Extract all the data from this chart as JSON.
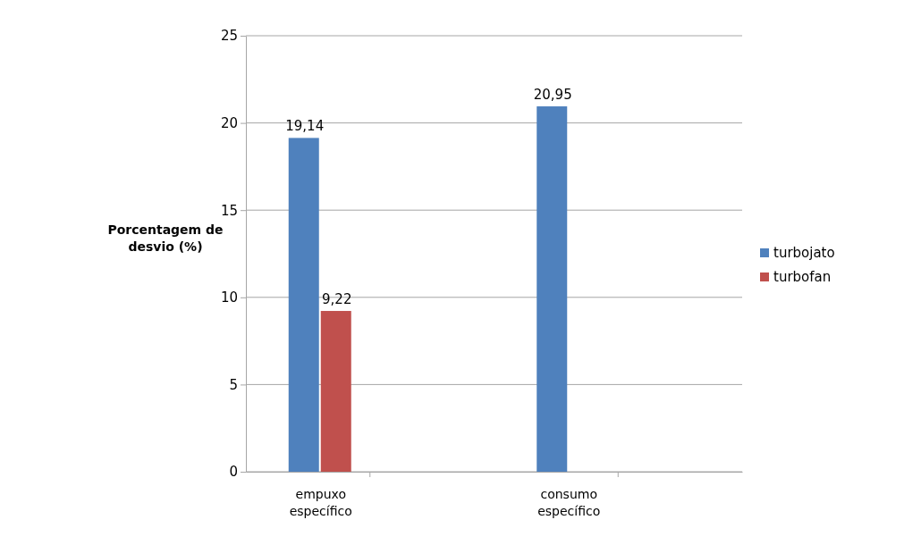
{
  "chart_data": {
    "type": "bar",
    "ylabel": "Porcentagem de desvio (%)",
    "categories": [
      "empuxo específico",
      "consumo específico"
    ],
    "series": [
      {
        "name": "turbojato",
        "color": "#4f81bd",
        "values": [
          19.14,
          20.95
        ],
        "value_labels": [
          "19,14",
          "20,95"
        ]
      },
      {
        "name": "turbofan",
        "color": "#c0504d",
        "values": [
          9.22,
          null
        ],
        "value_labels": [
          "9,22",
          null
        ]
      }
    ],
    "ylim": [
      0,
      25
    ],
    "yticks": [
      0,
      5,
      10,
      15,
      20,
      25
    ],
    "grid": "y",
    "legend": "right"
  }
}
